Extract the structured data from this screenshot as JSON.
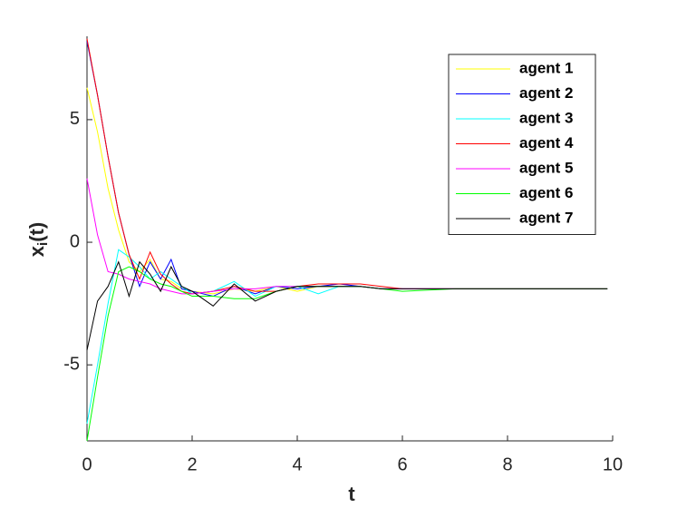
{
  "chart_data": {
    "type": "line",
    "xlabel": "t",
    "ylabel": [
      "x",
      "i",
      "(t)"
    ],
    "x": [
      0,
      0.2,
      0.4,
      0.6,
      0.8,
      1.0,
      1.2,
      1.4,
      1.6,
      1.8,
      2.0,
      2.4,
      2.8,
      3.2,
      3.6,
      4.0,
      4.4,
      4.8,
      5.2,
      5.6,
      6.0,
      7.0,
      8.0,
      9.0,
      9.9
    ],
    "series": [
      {
        "name": "agent 1",
        "color": "#ffff00",
        "values": [
          6.3,
          4.5,
          2.2,
          0.5,
          -0.8,
          -1.2,
          -0.7,
          -1.5,
          -1.6,
          -1.9,
          -2.0,
          -2.1,
          -1.9,
          -2.0,
          -1.8,
          -2.0,
          -1.8,
          -1.8,
          -1.8,
          -1.9,
          -1.9,
          -1.9,
          -1.9,
          -1.9,
          -1.9
        ]
      },
      {
        "name": "agent 2",
        "color": "#0000ff",
        "values": [
          8.2,
          6.0,
          3.5,
          1.2,
          -0.5,
          -1.8,
          -0.8,
          -1.5,
          -0.7,
          -1.9,
          -2.0,
          -2.2,
          -1.8,
          -2.1,
          -1.8,
          -1.9,
          -1.8,
          -1.7,
          -1.8,
          -1.9,
          -1.9,
          -1.9,
          -1.9,
          -1.9,
          -1.9
        ]
      },
      {
        "name": "agent 3",
        "color": "#00ffff",
        "values": [
          -7.4,
          -5.0,
          -2.5,
          -0.3,
          -0.6,
          -1.0,
          -1.5,
          -1.2,
          -1.5,
          -1.8,
          -2.1,
          -2.0,
          -1.6,
          -2.2,
          -1.8,
          -1.8,
          -2.1,
          -1.8,
          -1.8,
          -1.9,
          -1.9,
          -1.9,
          -1.9,
          -1.9,
          -1.9
        ]
      },
      {
        "name": "agent 4",
        "color": "#ff0000",
        "values": [
          8.3,
          6.0,
          3.5,
          1.2,
          -0.5,
          -1.5,
          -0.4,
          -1.3,
          -1.7,
          -2.0,
          -2.1,
          -2.0,
          -1.8,
          -2.0,
          -2.0,
          -1.8,
          -1.7,
          -1.7,
          -1.7,
          -1.8,
          -1.9,
          -1.9,
          -1.9,
          -1.9,
          -1.9
        ]
      },
      {
        "name": "agent 5",
        "color": "#ff00ff",
        "values": [
          2.6,
          0.3,
          -1.2,
          -1.3,
          -1.5,
          -1.6,
          -1.7,
          -1.9,
          -2.0,
          -2.1,
          -2.1,
          -2.0,
          -1.9,
          -1.9,
          -1.8,
          -1.8,
          -1.8,
          -1.8,
          -1.8,
          -1.9,
          -1.9,
          -1.9,
          -1.9,
          -1.9,
          -1.9
        ]
      },
      {
        "name": "agent 6",
        "color": "#00ff00",
        "values": [
          -8.1,
          -5.5,
          -3.0,
          -1.2,
          -1.0,
          -1.2,
          -1.5,
          -1.7,
          -1.8,
          -2.0,
          -2.2,
          -2.2,
          -2.3,
          -2.3,
          -2.0,
          -1.8,
          -1.8,
          -1.8,
          -1.8,
          -1.9,
          -2.0,
          -1.9,
          -1.9,
          -1.9,
          -1.9
        ]
      },
      {
        "name": "agent 7",
        "color": "#000000",
        "values": [
          -4.4,
          -2.4,
          -1.8,
          -0.8,
          -2.2,
          -0.8,
          -1.3,
          -2.0,
          -1.0,
          -1.8,
          -2.0,
          -2.6,
          -1.7,
          -2.4,
          -2.0,
          -1.8,
          -1.8,
          -1.8,
          -1.8,
          -1.9,
          -1.9,
          -1.9,
          -1.9,
          -1.9,
          -1.9
        ]
      }
    ],
    "xlim": [
      0,
      10
    ],
    "xticks": [
      0,
      2,
      4,
      6,
      8,
      10
    ],
    "ylim": [
      -8.1,
      8.4
    ],
    "yticks": [
      -5,
      0,
      5
    ],
    "grid": false,
    "legend": "northeast"
  }
}
